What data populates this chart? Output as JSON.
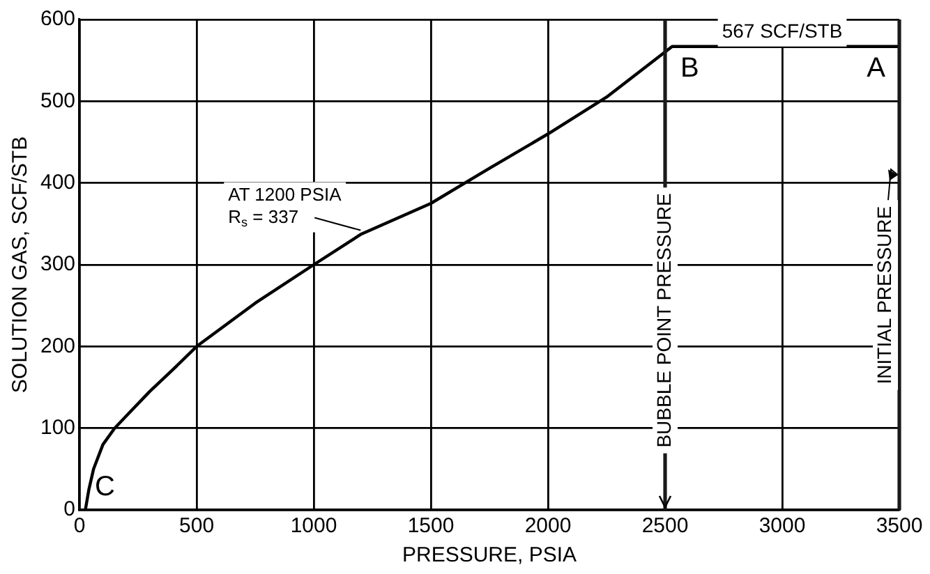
{
  "chart_data": {
    "type": "line",
    "xlabel": "PRESSURE, PSIA",
    "ylabel": "SOLUTION GAS, SCF/STB",
    "x": [
      25,
      40,
      60,
      100,
      150,
      200,
      300,
      400,
      500,
      750,
      1000,
      1200,
      1500,
      1750,
      2000,
      2250,
      2530,
      3000,
      3500
    ],
    "series": [
      {
        "color": "#000000",
        "values": [
          0,
          25,
          50,
          80,
          100,
          115,
          145,
          172,
          200,
          253,
          300,
          337,
          375,
          418,
          460,
          505,
          567,
          567,
          567
        ]
      }
    ],
    "xlim": [
      0,
      3500
    ],
    "xticks": [
      0,
      500,
      1000,
      1500,
      2000,
      2500,
      3000,
      3500
    ],
    "ylim": [
      0,
      600
    ],
    "yticks": [
      0,
      100,
      200,
      300,
      400,
      500,
      600
    ],
    "grid": true,
    "legend": false,
    "marker": "none",
    "line_style": "solid",
    "ref_lines": [
      {
        "axis": "x",
        "value": 2500,
        "label": "BUBBLE POINT PRESSURE",
        "color": "#1a1a1a"
      },
      {
        "axis": "x",
        "value": 3500,
        "label": "INITIAL PRESSURE",
        "color": "#1a1a1a"
      }
    ],
    "annotations": [
      {
        "text": "AT 1200 PSIA\nR$_{s}$ = 337",
        "x": 1200,
        "y": 337
      },
      {
        "text": "567 SCF/STB",
        "x": 3000,
        "y": 567
      },
      {
        "text": "A",
        "x": 3500,
        "y": 567
      },
      {
        "text": "B",
        "x": 2530,
        "y": 567
      },
      {
        "text": "C",
        "x": 25,
        "y": 0
      }
    ]
  }
}
